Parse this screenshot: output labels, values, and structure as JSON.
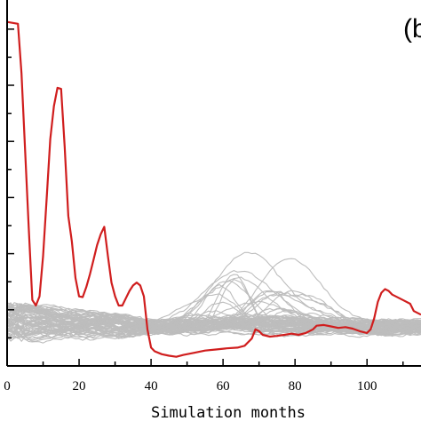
{
  "chart_data": {
    "type": "line",
    "title": "",
    "panel_label": "(b",
    "xlabel": "Simulation months",
    "ylabel": "",
    "xlim": [
      0,
      115
    ],
    "x_ticks": [
      0,
      20,
      40,
      60,
      80,
      100
    ],
    "x_tick_labels": [
      "0",
      "20",
      "40",
      "60",
      "80",
      "100"
    ],
    "grid": false,
    "legend": "none",
    "colors": {
      "highlight": "#d01e1e",
      "ensemble": "#bdbdbd"
    },
    "series": [
      {
        "style": "highlight",
        "points": [
          [
            0,
            0.94
          ],
          [
            3,
            0.935
          ],
          [
            4,
            0.8
          ],
          [
            6,
            0.38
          ],
          [
            7,
            0.18
          ],
          [
            8,
            0.165
          ],
          [
            9,
            0.19
          ],
          [
            10,
            0.3
          ],
          [
            11,
            0.46
          ],
          [
            12,
            0.62
          ],
          [
            13,
            0.71
          ],
          [
            14,
            0.76
          ],
          [
            15,
            0.757
          ],
          [
            16,
            0.6
          ],
          [
            17,
            0.41
          ],
          [
            18,
            0.34
          ],
          [
            19,
            0.24
          ],
          [
            20,
            0.19
          ],
          [
            21,
            0.188
          ],
          [
            22,
            0.215
          ],
          [
            23,
            0.25
          ],
          [
            24,
            0.29
          ],
          [
            25,
            0.33
          ],
          [
            26,
            0.36
          ],
          [
            27,
            0.38
          ],
          [
            28,
            0.3
          ],
          [
            29,
            0.228
          ],
          [
            30,
            0.19
          ],
          [
            31,
            0.165
          ],
          [
            32,
            0.165
          ],
          [
            33,
            0.185
          ],
          [
            34,
            0.205
          ],
          [
            35,
            0.22
          ],
          [
            36,
            0.228
          ],
          [
            37,
            0.22
          ],
          [
            38,
            0.19
          ],
          [
            39,
            0.1
          ],
          [
            40,
            0.05
          ],
          [
            41,
            0.04
          ],
          [
            43,
            0.032
          ],
          [
            45,
            0.028
          ],
          [
            47,
            0.025
          ],
          [
            49,
            0.03
          ],
          [
            52,
            0.036
          ],
          [
            55,
            0.042
          ],
          [
            58,
            0.045
          ],
          [
            61,
            0.048
          ],
          [
            64,
            0.05
          ],
          [
            66,
            0.055
          ],
          [
            68,
            0.075
          ],
          [
            69,
            0.1
          ],
          [
            70,
            0.095
          ],
          [
            71,
            0.085
          ],
          [
            73,
            0.08
          ],
          [
            75,
            0.082
          ],
          [
            77,
            0.085
          ],
          [
            79,
            0.088
          ],
          [
            81,
            0.085
          ],
          [
            83,
            0.09
          ],
          [
            85,
            0.1
          ],
          [
            86,
            0.11
          ],
          [
            88,
            0.112
          ],
          [
            90,
            0.108
          ],
          [
            92,
            0.104
          ],
          [
            94,
            0.106
          ],
          [
            96,
            0.102
          ],
          [
            98,
            0.095
          ],
          [
            100,
            0.09
          ],
          [
            101,
            0.1
          ],
          [
            102,
            0.13
          ],
          [
            103,
            0.175
          ],
          [
            104,
            0.2
          ],
          [
            105,
            0.21
          ],
          [
            106,
            0.205
          ],
          [
            107,
            0.195
          ],
          [
            108,
            0.19
          ],
          [
            110,
            0.18
          ],
          [
            112,
            0.17
          ],
          [
            113,
            0.15
          ],
          [
            115,
            0.14
          ]
        ]
      }
    ]
  }
}
